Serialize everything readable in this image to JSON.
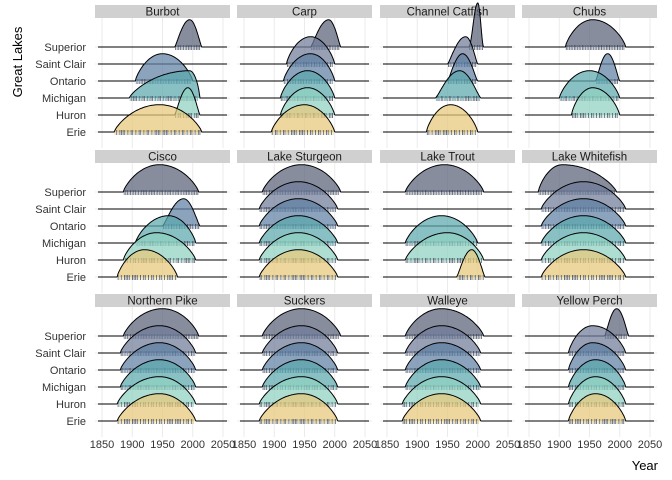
{
  "chart_data": {
    "type": "ridgeline",
    "xlabel": "Year",
    "ylabel": "Great Lakes",
    "xlim": [
      1850,
      2050
    ],
    "x_ticks": [
      1850,
      1900,
      1950,
      2000,
      2050
    ],
    "lakes": [
      "Erie",
      "Huron",
      "Michigan",
      "Ontario",
      "Saint Clair",
      "Superior"
    ],
    "lake_colors": {
      "Superior": "#5a6178",
      "Saint Clair": "#6f7b98",
      "Ontario": "#5e7fa3",
      "Michigan": "#5aa8ad",
      "Huron": "#8fd1c0",
      "Erie": "#e6c878"
    },
    "grid": true,
    "legend": "none",
    "panels": [
      {
        "species": "Burbot",
        "ridges": {
          "Superior": {
            "start": 1970,
            "end": 2015,
            "peak": 1995
          },
          "Ontario": {
            "start": 1905,
            "end": 2000,
            "peak": 1950
          },
          "Michigan": {
            "start": 1895,
            "end": 2012,
            "peak": 1995
          },
          "Huron": {
            "start": 1970,
            "end": 2012,
            "peak": 1992
          },
          "Erie": {
            "start": 1870,
            "end": 2015,
            "peak": 1945
          }
        }
      },
      {
        "species": "Carp",
        "ridges": {
          "Superior": {
            "start": 1960,
            "end": 2010,
            "peak": 1990
          },
          "Saint Clair": {
            "start": 1920,
            "end": 2000,
            "peak": 1960
          },
          "Ontario": {
            "start": 1915,
            "end": 2000,
            "peak": 1960
          },
          "Michigan": {
            "start": 1910,
            "end": 2000,
            "peak": 1955
          },
          "Huron": {
            "start": 1910,
            "end": 2000,
            "peak": 1955
          },
          "Erie": {
            "start": 1895,
            "end": 2000,
            "peak": 1950
          }
        }
      },
      {
        "species": "Channel Catfish",
        "ridges": {
          "Superior": {
            "start": 1985,
            "end": 2010,
            "peak": 2000
          },
          "Saint Clair": {
            "start": 1950,
            "end": 2000,
            "peak": 1980
          },
          "Ontario": {
            "start": 1950,
            "end": 2000,
            "peak": 1975
          },
          "Michigan": {
            "start": 1930,
            "end": 2005,
            "peak": 1970
          },
          "Erie": {
            "start": 1915,
            "end": 2000,
            "peak": 1955
          }
        }
      },
      {
        "species": "Chubs",
        "ridges": {
          "Superior": {
            "start": 1910,
            "end": 2010,
            "peak": 1955
          },
          "Ontario": {
            "start": 1960,
            "end": 2000,
            "peak": 1980
          },
          "Michigan": {
            "start": 1900,
            "end": 2000,
            "peak": 1950
          },
          "Huron": {
            "start": 1920,
            "end": 2000,
            "peak": 1955
          }
        }
      },
      {
        "species": "Cisco",
        "ridges": {
          "Superior": {
            "start": 1885,
            "end": 2010,
            "peak": 1945
          },
          "Ontario": {
            "start": 1950,
            "end": 2012,
            "peak": 1985
          },
          "Michigan": {
            "start": 1905,
            "end": 2005,
            "peak": 1960
          },
          "Huron": {
            "start": 1885,
            "end": 2005,
            "peak": 1940
          },
          "Erie": {
            "start": 1875,
            "end": 1975,
            "peak": 1920
          }
        }
      },
      {
        "species": "Lake Sturgeon",
        "ridges": {
          "Superior": {
            "start": 1880,
            "end": 2010,
            "peak": 1945
          },
          "Saint Clair": {
            "start": 1875,
            "end": 2005,
            "peak": 1940
          },
          "Ontario": {
            "start": 1875,
            "end": 2005,
            "peak": 1940
          },
          "Michigan": {
            "start": 1875,
            "end": 2005,
            "peak": 1940
          },
          "Huron": {
            "start": 1875,
            "end": 2005,
            "peak": 1940
          },
          "Erie": {
            "start": 1875,
            "end": 2005,
            "peak": 1940
          }
        }
      },
      {
        "species": "Lake Trout",
        "ridges": {
          "Superior": {
            "start": 1880,
            "end": 2010,
            "peak": 1945
          },
          "Michigan": {
            "start": 1880,
            "end": 2000,
            "peak": 1940
          },
          "Huron": {
            "start": 1880,
            "end": 2010,
            "peak": 1950
          },
          "Erie": {
            "start": 1965,
            "end": 2012,
            "peak": 1990
          }
        }
      },
      {
        "species": "Lake Whitefish",
        "ridges": {
          "Superior": {
            "start": 1865,
            "end": 1995,
            "peak": 1905
          },
          "Saint Clair": {
            "start": 1870,
            "end": 2010,
            "peak": 1940
          },
          "Ontario": {
            "start": 1870,
            "end": 2010,
            "peak": 1940
          },
          "Michigan": {
            "start": 1870,
            "end": 2010,
            "peak": 1940
          },
          "Huron": {
            "start": 1870,
            "end": 2010,
            "peak": 1940
          },
          "Erie": {
            "start": 1870,
            "end": 2010,
            "peak": 1940
          }
        }
      },
      {
        "species": "Northern Pike",
        "ridges": {
          "Superior": {
            "start": 1885,
            "end": 2010,
            "peak": 1950
          },
          "Saint Clair": {
            "start": 1880,
            "end": 2005,
            "peak": 1945
          },
          "Ontario": {
            "start": 1880,
            "end": 2005,
            "peak": 1945
          },
          "Michigan": {
            "start": 1880,
            "end": 2005,
            "peak": 1945
          },
          "Huron": {
            "start": 1875,
            "end": 2005,
            "peak": 1945
          },
          "Erie": {
            "start": 1875,
            "end": 2005,
            "peak": 1945
          }
        }
      },
      {
        "species": "Suckers",
        "ridges": {
          "Superior": {
            "start": 1880,
            "end": 2010,
            "peak": 1945
          },
          "Saint Clair": {
            "start": 1880,
            "end": 2005,
            "peak": 1945
          },
          "Ontario": {
            "start": 1880,
            "end": 2005,
            "peak": 1945
          },
          "Michigan": {
            "start": 1880,
            "end": 2005,
            "peak": 1945
          },
          "Huron": {
            "start": 1875,
            "end": 2005,
            "peak": 1945
          },
          "Erie": {
            "start": 1875,
            "end": 2005,
            "peak": 1945
          }
        }
      },
      {
        "species": "Walleye",
        "ridges": {
          "Superior": {
            "start": 1880,
            "end": 2010,
            "peak": 1940
          },
          "Saint Clair": {
            "start": 1880,
            "end": 2005,
            "peak": 1940
          },
          "Ontario": {
            "start": 1880,
            "end": 2005,
            "peak": 1940
          },
          "Michigan": {
            "start": 1880,
            "end": 2005,
            "peak": 1940
          },
          "Huron": {
            "start": 1875,
            "end": 2005,
            "peak": 1940
          },
          "Erie": {
            "start": 1875,
            "end": 2005,
            "peak": 1940
          }
        }
      },
      {
        "species": "Yellow Perch",
        "ridges": {
          "Superior": {
            "start": 1975,
            "end": 2015,
            "peak": 1995
          },
          "Saint Clair": {
            "start": 1915,
            "end": 2010,
            "peak": 1955
          },
          "Ontario": {
            "start": 1915,
            "end": 2010,
            "peak": 1955
          },
          "Michigan": {
            "start": 1915,
            "end": 2010,
            "peak": 1960
          },
          "Huron": {
            "start": 1915,
            "end": 2010,
            "peak": 1960
          },
          "Erie": {
            "start": 1915,
            "end": 2010,
            "peak": 1960
          }
        }
      }
    ]
  }
}
